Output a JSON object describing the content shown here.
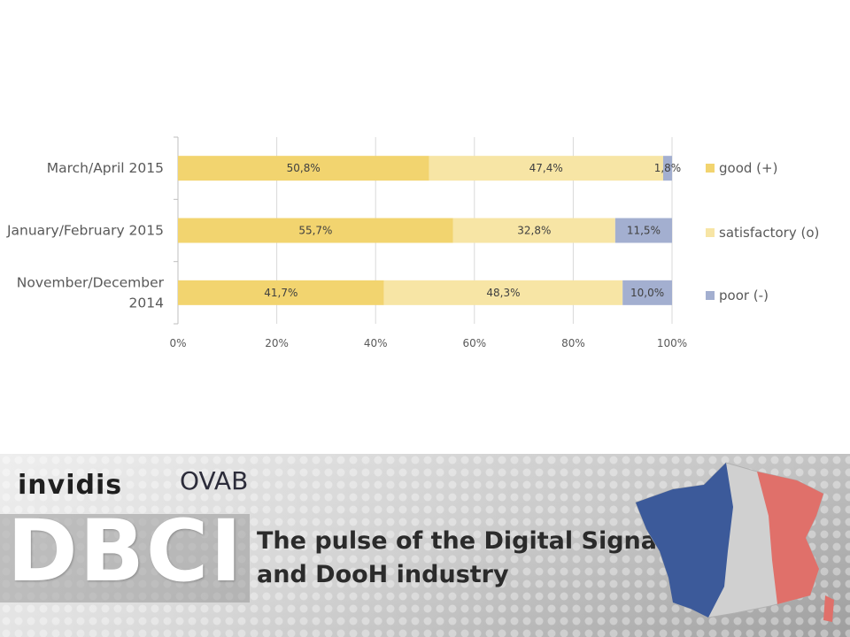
{
  "chart_data": {
    "type": "bar",
    "orientation": "horizontal",
    "stacked": "percent",
    "categories": [
      "March/April 2015",
      "January/February 2015",
      "November/December 2014"
    ],
    "category_lines": [
      [
        "March/April 2015"
      ],
      [
        "January/February 2015"
      ],
      [
        "November/December",
        "2014"
      ]
    ],
    "series": [
      {
        "name": "good (+)",
        "color": "#F2D46F",
        "values": [
          50.8,
          55.7,
          41.7
        ],
        "labels": [
          "50,8%",
          "55,7%",
          "41,7%"
        ]
      },
      {
        "name": "satisfactory (o)",
        "color": "#F7E5A5",
        "values": [
          47.4,
          32.8,
          48.3
        ],
        "labels": [
          "47,4%",
          "32,8%",
          "48,3%"
        ]
      },
      {
        "name": "poor (-)",
        "color": "#A3AFD0",
        "values": [
          1.8,
          11.5,
          10.0
        ],
        "labels": [
          "1,8%",
          "11,5%",
          "10,0%"
        ]
      }
    ],
    "x_ticks": [
      0,
      20,
      40,
      60,
      80,
      100
    ],
    "x_tick_labels": [
      "0%",
      "20%",
      "40%",
      "60%",
      "80%",
      "100%"
    ],
    "xlim": [
      0,
      100
    ],
    "grid": true,
    "legend_position": "right"
  },
  "banner": {
    "logo_left": "invidis",
    "logo_right": "OVAB",
    "headline": "DBCI",
    "tagline_line1": "The pulse of the Digital Signage",
    "tagline_line2": "and DooH industry",
    "colors": {
      "flag_blue": "#3C5A9A",
      "flag_red": "#E0706A",
      "flag_white": "#F2F2F2"
    }
  }
}
